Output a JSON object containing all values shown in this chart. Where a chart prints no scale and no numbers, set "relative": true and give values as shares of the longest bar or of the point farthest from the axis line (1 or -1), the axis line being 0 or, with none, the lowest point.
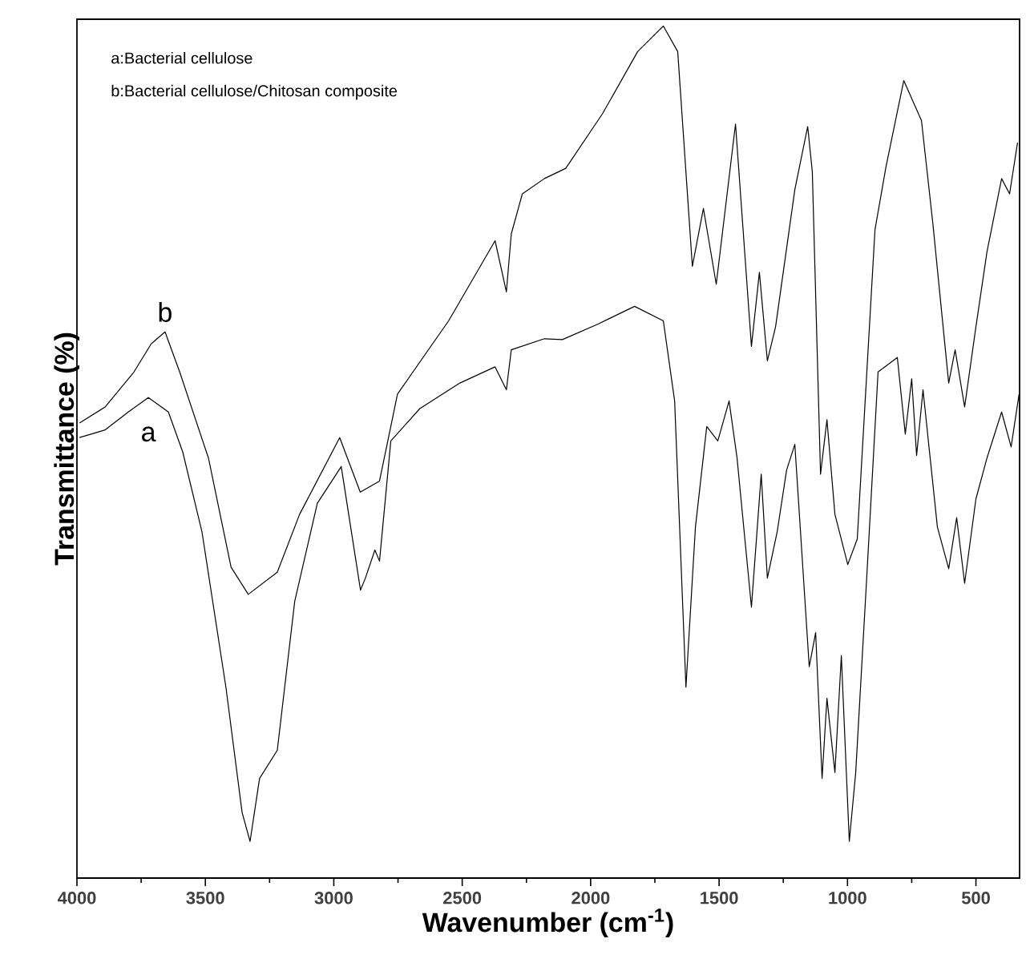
{
  "chart_data": {
    "type": "line",
    "relative": true,
    "xlabel": "Wavenumber (cm$^{-1}$)",
    "ylabel": "Transmittance (%)",
    "xlim": [
      4000,
      330
    ],
    "xticks": [
      4000,
      3500,
      3000,
      2500,
      2000,
      1500,
      1000,
      500
    ],
    "tick_labels": "x",
    "grid": false,
    "marker": "none",
    "line_style": "solid",
    "annotations": [
      "a:Bacterial cellulose",
      "b:Bacterial cellulose/Chitosan composite"
    ],
    "series": [
      {
        "name": "b",
        "color": "#000000",
        "x": [
          3990,
          3890,
          3778,
          3711,
          3657,
          3600,
          3488,
          3400,
          3333,
          3220,
          3133,
          2977,
          2897,
          2822,
          2752,
          2553,
          2372,
          2328,
          2309,
          2266,
          2180,
          2097,
          1954,
          1817,
          1717,
          1661,
          1604,
          1561,
          1511,
          1436,
          1374,
          1343,
          1312,
          1280,
          1205,
          1155,
          1137,
          1105,
          1080,
          1049,
          999,
          962,
          893,
          850,
          781,
          712,
          668,
          606,
          581,
          544,
          500,
          457,
          400,
          369,
          338
        ],
        "values": [
          0.534,
          0.553,
          0.594,
          0.627,
          0.641,
          0.594,
          0.493,
          0.365,
          0.333,
          0.359,
          0.427,
          0.517,
          0.453,
          0.466,
          0.568,
          0.654,
          0.748,
          0.688,
          0.756,
          0.803,
          0.821,
          0.833,
          0.897,
          0.97,
          1.0,
          0.97,
          0.718,
          0.786,
          0.697,
          0.885,
          0.624,
          0.711,
          0.607,
          0.647,
          0.808,
          0.882,
          0.829,
          0.474,
          0.538,
          0.427,
          0.368,
          0.398,
          0.761,
          0.835,
          0.936,
          0.889,
          0.769,
          0.581,
          0.62,
          0.553,
          0.647,
          0.735,
          0.821,
          0.803,
          0.863
        ]
      },
      {
        "name": "a",
        "color": "#000000",
        "x": [
          3990,
          3890,
          3800,
          3722,
          3644,
          3588,
          3513,
          3420,
          3357,
          3326,
          3289,
          3220,
          3152,
          3064,
          2971,
          2896,
          2877,
          2840,
          2822,
          2778,
          2665,
          2509,
          2372,
          2328,
          2309,
          2180,
          2110,
          1973,
          1829,
          1717,
          1673,
          1629,
          1592,
          1548,
          1505,
          1461,
          1430,
          1374,
          1336,
          1312,
          1274,
          1237,
          1205,
          1149,
          1124,
          1099,
          1080,
          1049,
          1024,
          993,
          968,
          924,
          881,
          806,
          775,
          750,
          731,
          706,
          650,
          606,
          575,
          544,
          500,
          457,
          400,
          363,
          332
        ],
        "values": [
          0.517,
          0.526,
          0.547,
          0.564,
          0.547,
          0.5,
          0.406,
          0.224,
          0.077,
          0.043,
          0.117,
          0.15,
          0.325,
          0.44,
          0.483,
          0.338,
          0.352,
          0.385,
          0.372,
          0.513,
          0.551,
          0.581,
          0.6,
          0.573,
          0.62,
          0.633,
          0.632,
          0.65,
          0.671,
          0.654,
          0.56,
          0.224,
          0.412,
          0.53,
          0.513,
          0.56,
          0.493,
          0.318,
          0.474,
          0.352,
          0.406,
          0.479,
          0.509,
          0.248,
          0.288,
          0.117,
          0.211,
          0.124,
          0.261,
          0.043,
          0.124,
          0.359,
          0.594,
          0.611,
          0.521,
          0.586,
          0.496,
          0.573,
          0.412,
          0.363,
          0.423,
          0.346,
          0.445,
          0.493,
          0.547,
          0.506,
          0.568
        ]
      }
    ]
  }
}
